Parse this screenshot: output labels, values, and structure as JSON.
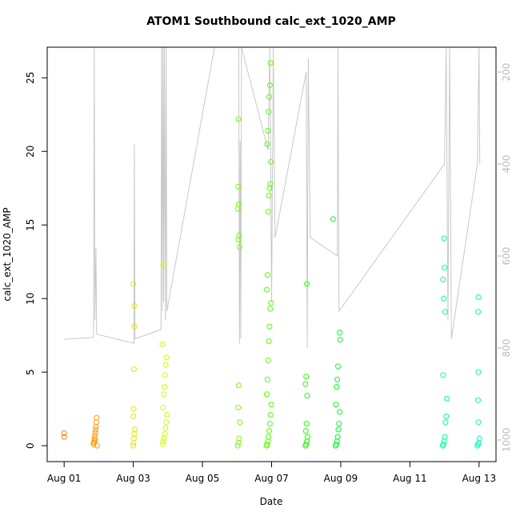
{
  "chart_data": {
    "type": "scatter",
    "title": "ATOM1 Southbound calc_ext_1020_AMP",
    "x_label": "Date",
    "y_label": "calc_ext_1020_AMP",
    "xlim": [
      0.51,
      13.49
    ],
    "xticks": [
      {
        "value": 1,
        "label": "Aug 01"
      },
      {
        "value": 3,
        "label": "Aug 03"
      },
      {
        "value": 5,
        "label": "Aug 05"
      },
      {
        "value": 7,
        "label": "Aug 07"
      },
      {
        "value": 9,
        "label": "Aug 09"
      },
      {
        "value": 11,
        "label": "Aug 11"
      },
      {
        "value": 13,
        "label": "Aug 13"
      }
    ],
    "ylim": [
      -1.08,
      27.08
    ],
    "yticks": [
      0,
      5,
      10,
      15,
      20,
      25
    ],
    "y2lim": [
      1047,
      146
    ],
    "y2ticks": [
      200,
      400,
      600,
      800,
      1000
    ],
    "series": [
      {
        "color": "#FF8000",
        "x": [
          1.0,
          1.0
        ],
        "values": [
          0.6,
          0.85
        ]
      },
      {
        "color": "#FF9900",
        "x": [
          1.85,
          1.86,
          1.87,
          1.88,
          1.89,
          1.9,
          1.91,
          1.92,
          1.93,
          1.94,
          1.95,
          1.9
        ],
        "values": [
          0.1,
          0.2,
          0.3,
          0.5,
          0.7,
          0.9,
          1.1,
          1.3,
          1.6,
          1.9,
          0.0,
          0.4
        ]
      },
      {
        "color": "#E6E600",
        "x": [
          3.0,
          3.01,
          3.02,
          3.03,
          3.04,
          3.0,
          3.01,
          3.02,
          3.03,
          3.04,
          3.0
        ],
        "values": [
          0.0,
          0.2,
          0.5,
          0.8,
          1.1,
          2.0,
          2.5,
          5.2,
          8.1,
          9.5,
          11.0
        ]
      },
      {
        "color": "#CCFF00",
        "x": [
          3.85,
          3.87,
          3.89,
          3.91,
          3.93,
          3.95,
          3.97,
          3.86,
          3.88,
          3.9,
          3.92,
          3.94,
          3.96,
          3.84,
          3.86
        ],
        "values": [
          0.1,
          0.3,
          0.5,
          0.8,
          1.2,
          1.6,
          2.1,
          2.6,
          3.5,
          4.0,
          4.8,
          5.5,
          6.0,
          6.9,
          12.3
        ]
      },
      {
        "color": "#77FF00",
        "x": [
          6.02,
          6.04,
          6.06,
          6.08,
          6.03,
          6.05,
          6.07,
          6.04,
          6.06,
          6.02,
          6.05,
          6.03,
          6.04
        ],
        "values": [
          0.0,
          0.2,
          0.5,
          1.6,
          2.6,
          4.1,
          13.5,
          14.0,
          14.3,
          16.1,
          16.4,
          17.6,
          22.2
        ]
      },
      {
        "color": "#55FF00",
        "x": [
          6.85,
          6.87,
          6.89,
          6.91,
          6.93,
          6.95,
          6.97,
          6.99,
          6.86,
          6.88,
          6.9,
          6.92,
          6.94,
          6.96,
          6.98,
          6.86,
          6.88,
          6.9,
          6.92,
          6.94,
          6.96,
          6.98,
          6.87,
          6.89,
          6.91,
          6.93,
          6.95,
          6.97
        ],
        "values": [
          0.0,
          0.1,
          0.3,
          0.6,
          1.0,
          1.5,
          2.1,
          2.8,
          3.5,
          4.5,
          5.8,
          7.1,
          8.1,
          9.3,
          9.7,
          10.6,
          11.6,
          15.9,
          17.0,
          17.5,
          17.8,
          19.3,
          20.5,
          21.4,
          22.7,
          23.7,
          24.5,
          26.0
        ]
      },
      {
        "color": "#22FF00",
        "x": [
          7.98,
          8.0,
          8.02,
          8.04,
          7.99,
          8.01,
          8.03,
          7.98,
          8.0,
          8.02
        ],
        "values": [
          0.0,
          0.1,
          0.3,
          0.6,
          1.0,
          1.5,
          3.4,
          4.2,
          4.7,
          11.0
        ]
      },
      {
        "color": "#00FF22",
        "x": [
          8.85,
          8.87,
          8.89,
          8.91,
          8.93,
          8.95,
          8.97,
          8.86,
          8.88,
          8.9,
          8.92,
          8.98,
          8.97,
          8.78
        ],
        "values": [
          0.0,
          0.1,
          0.3,
          0.6,
          1.1,
          1.5,
          2.3,
          2.8,
          4.0,
          4.5,
          5.4,
          7.2,
          7.7,
          15.4
        ]
      },
      {
        "color": "#00FF99",
        "x": [
          11.95,
          11.97,
          11.99,
          12.01,
          12.03,
          12.05,
          12.07,
          11.96,
          12.02,
          11.98,
          11.96,
          12.0,
          11.99
        ],
        "values": [
          0.0,
          0.1,
          0.3,
          0.6,
          1.6,
          2.0,
          3.2,
          4.8,
          9.1,
          10.0,
          11.3,
          12.1,
          14.1
        ]
      },
      {
        "color": "#00FFBB",
        "x": [
          12.95,
          12.97,
          12.99,
          13.01,
          12.98,
          12.97,
          12.98,
          12.97,
          12.98
        ],
        "values": [
          0.0,
          0.1,
          0.2,
          0.5,
          1.6,
          3.1,
          5.0,
          9.1,
          10.1
        ]
      },
      {
        "color": "#C8C8C8",
        "axis": "y2",
        "style": "line",
        "x": [
          1.0,
          1.85,
          1.87,
          1.89,
          1.92,
          1.94,
          3.02,
          3.03,
          3.05,
          3.8,
          3.82,
          3.84,
          3.86,
          3.88,
          3.9,
          3.93,
          3.95,
          3.97,
          5.35,
          6.05,
          6.07,
          6.09,
          6.11,
          6.13,
          6.9,
          6.95,
          7.0,
          7.05,
          7.1,
          8.0,
          8.03,
          8.06,
          8.12,
          8.9,
          8.92,
          8.95,
          12.0,
          12.05,
          12.1,
          12.15,
          12.2,
          12.95,
          13.0,
          13.02
        ],
        "values": [
          781,
          777,
          146,
          740,
          583,
          770,
          790,
          357,
          780,
          760,
          146,
          720,
          146,
          700,
          146,
          740,
          146,
          720,
          146,
          146,
          790,
          350,
          780,
          146,
          370,
          146,
          700,
          146,
          560,
          200,
          800,
          170,
          560,
          600,
          146,
          720,
          400,
          146,
          740,
          146,
          780,
          400,
          146,
          400
        ]
      }
    ]
  }
}
